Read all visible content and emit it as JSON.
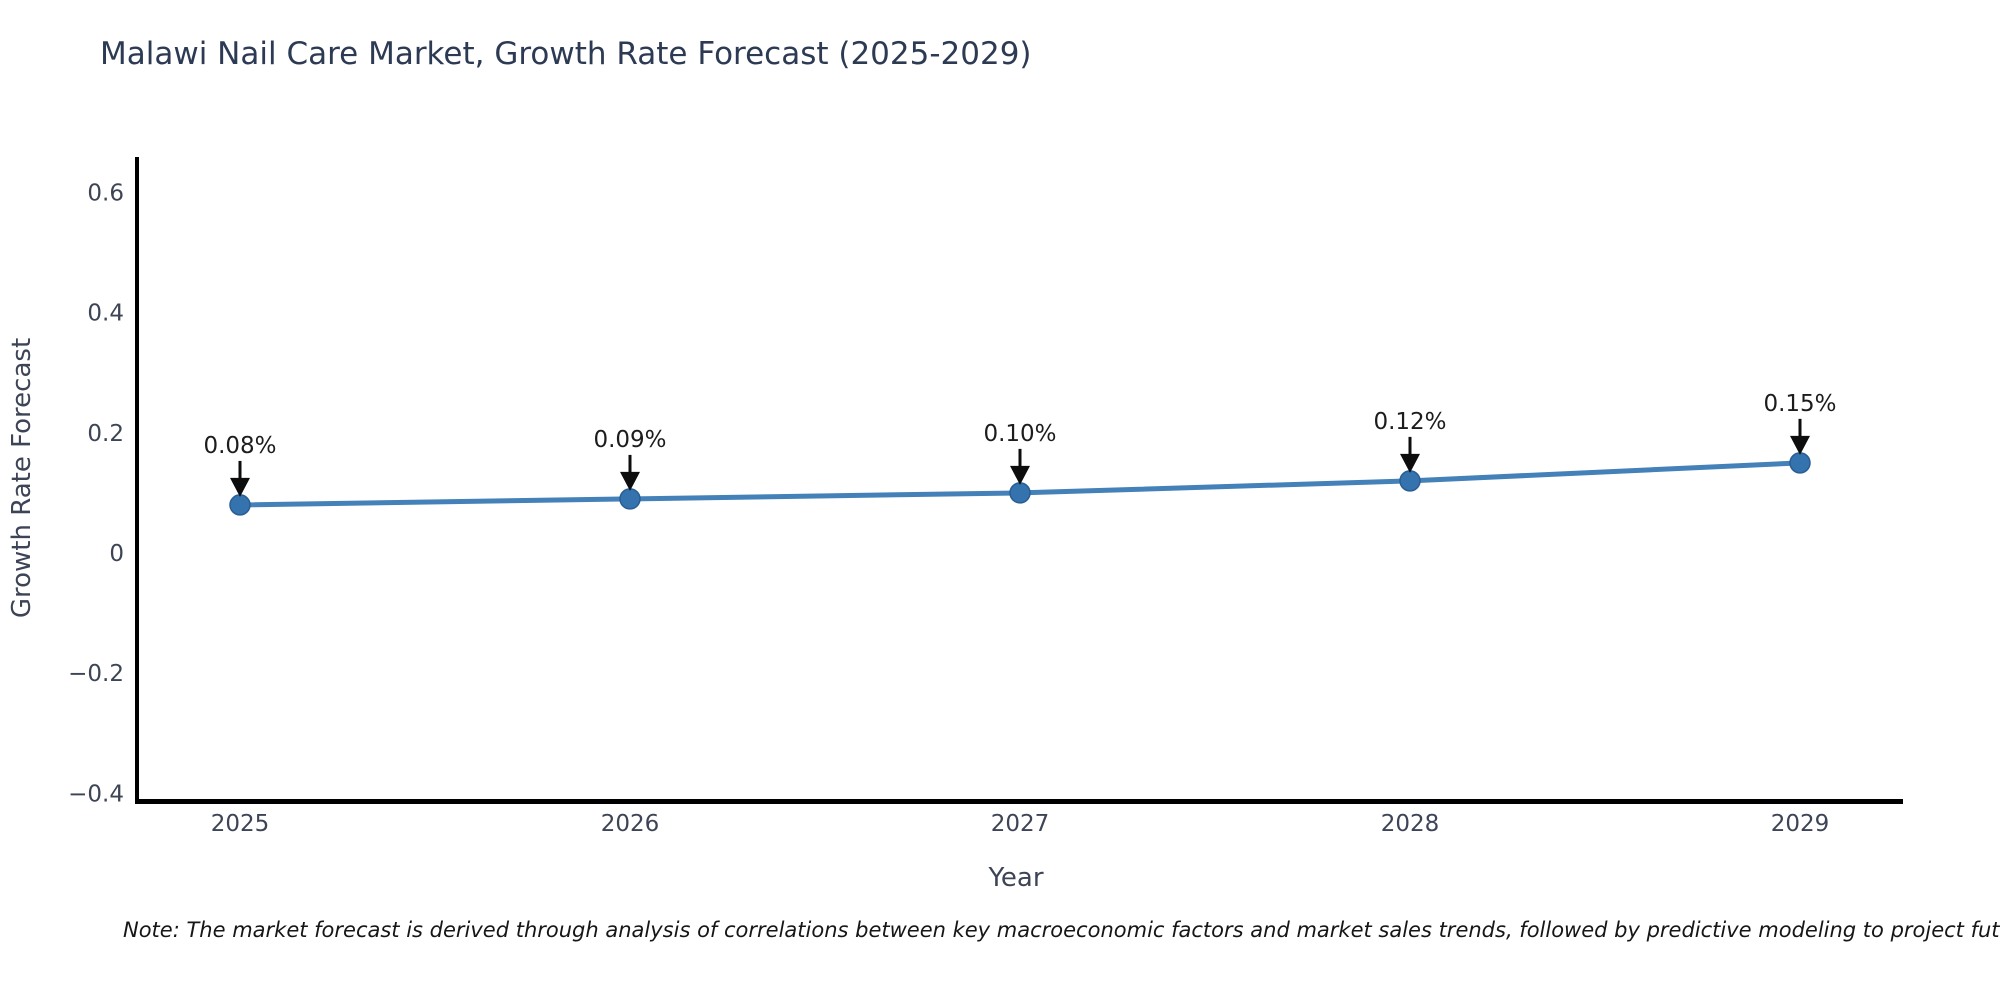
{
  "title": "Malawi Nail Care Market, Growth Rate Forecast (2025-2029)",
  "note": "Note: The market forecast is derived through analysis of correlations between key macroeconomic factors and market sales trends, followed by predictive modeling to project future sa",
  "chart_data": {
    "type": "line",
    "title": "Malawi Nail Care Market, Growth Rate Forecast (2025-2029)",
    "xlabel": "Year",
    "ylabel": "Growth Rate Forecast",
    "x": [
      2025,
      2026,
      2027,
      2028,
      2029
    ],
    "series": [
      {
        "name": "Growth Rate Forecast",
        "values": [
          0.08,
          0.09,
          0.1,
          0.12,
          0.15
        ]
      }
    ],
    "point_labels": [
      "0.08%",
      "0.09%",
      "0.10%",
      "0.12%",
      "0.15%"
    ],
    "xtick_labels": [
      "2025",
      "2026",
      "2027",
      "2028",
      "2029"
    ],
    "ytick_labels": [
      "0.6",
      "0.4",
      "0.2",
      "0",
      "−0.2",
      "−0.4"
    ],
    "ytick_values": [
      0.6,
      0.4,
      0.2,
      0,
      -0.2,
      -0.4
    ],
    "ylim": [
      -0.42,
      0.66
    ],
    "grid": false,
    "legend_position": "none",
    "annotation_style": "black-down-arrow",
    "colors": {
      "line": "#4381b8",
      "marker": "#3573ae",
      "marker_edge": "#2a5d94",
      "annotation_text": "#1c1c1c",
      "arrow": "#0d0d0d",
      "axis_spine": "#000000",
      "tick_text": "#3d4455",
      "axis_label_text": "#3d4455",
      "title_text": "#2d3a53"
    }
  }
}
